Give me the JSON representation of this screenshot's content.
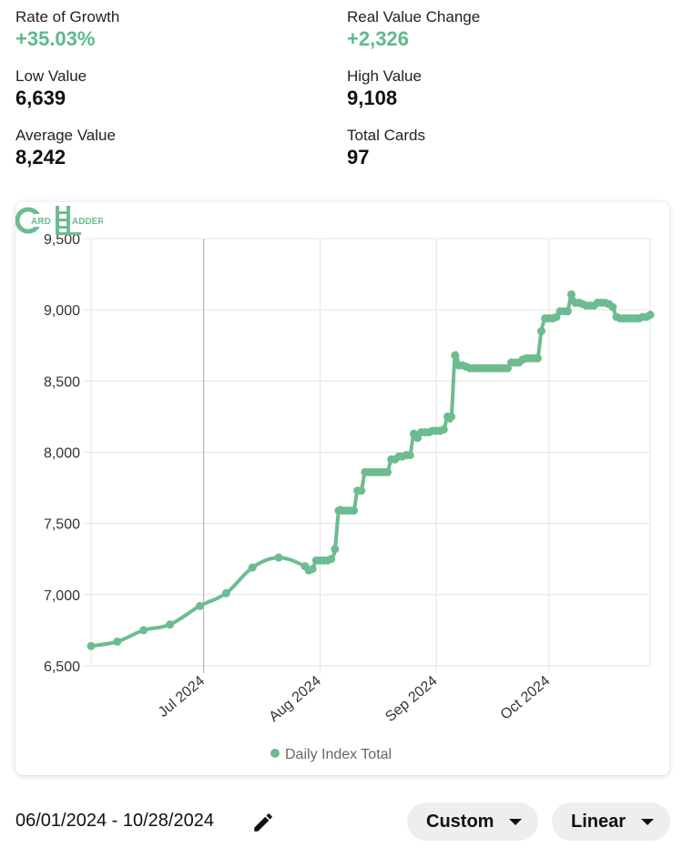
{
  "stats": {
    "rate_of_growth": {
      "label": "Rate of Growth",
      "value": "+35.03%"
    },
    "real_value_change": {
      "label": "Real Value Change",
      "value": "+2,326"
    },
    "low_value": {
      "label": "Low Value",
      "value": "6,639"
    },
    "high_value": {
      "label": "High Value",
      "value": "9,108"
    },
    "average_value": {
      "label": "Average Value",
      "value": "8,242"
    },
    "total_cards": {
      "label": "Total Cards",
      "value": "97"
    }
  },
  "colors": {
    "accent": "#5cb98c",
    "line": "#6cbc8f"
  },
  "logo": {
    "icon": "card-ladder-logo",
    "text": "CARD LADDER"
  },
  "footer": {
    "date_range": "06/01/2024 - 10/28/2024",
    "edit_icon": "pencil-icon",
    "range_select": "Custom",
    "scale_select": "Linear"
  },
  "chart_data": {
    "type": "line",
    "title": "",
    "xlabel": "",
    "ylabel": "",
    "ylim": [
      6500,
      9500
    ],
    "xlim": [
      "2024-06-01",
      "2024-10-28"
    ],
    "y_ticks": [
      "9,500",
      "9,000",
      "8,500",
      "8,000",
      "7,500",
      "7,000",
      "6,500"
    ],
    "x_ticks": [
      {
        "date": "2024-07-01",
        "label": "Jul 2024"
      },
      {
        "date": "2024-08-01",
        "label": "Aug 2024"
      },
      {
        "date": "2024-09-01",
        "label": "Sep 2024"
      },
      {
        "date": "2024-10-01",
        "label": "Oct 2024"
      }
    ],
    "grid": true,
    "legend": "bottom",
    "series": [
      {
        "name": "Daily Index Total",
        "points": [
          [
            "2024-06-01",
            6639
          ],
          [
            "2024-06-08",
            6670
          ],
          [
            "2024-06-15",
            6750
          ],
          [
            "2024-06-22",
            6790
          ],
          [
            "2024-06-30",
            6920
          ],
          [
            "2024-07-07",
            7010
          ],
          [
            "2024-07-14",
            7190
          ],
          [
            "2024-07-21",
            7260
          ],
          [
            "2024-07-28",
            7200
          ],
          [
            "2024-07-29",
            7170
          ],
          [
            "2024-07-30",
            7180
          ],
          [
            "2024-07-31",
            7240
          ],
          [
            "2024-08-01",
            7240
          ],
          [
            "2024-08-02",
            7240
          ],
          [
            "2024-08-03",
            7240
          ],
          [
            "2024-08-04",
            7250
          ],
          [
            "2024-08-05",
            7320
          ],
          [
            "2024-08-06",
            7590
          ],
          [
            "2024-08-07",
            7590
          ],
          [
            "2024-08-08",
            7590
          ],
          [
            "2024-08-09",
            7590
          ],
          [
            "2024-08-10",
            7590
          ],
          [
            "2024-08-11",
            7730
          ],
          [
            "2024-08-12",
            7730
          ],
          [
            "2024-08-13",
            7860
          ],
          [
            "2024-08-14",
            7860
          ],
          [
            "2024-08-15",
            7860
          ],
          [
            "2024-08-16",
            7860
          ],
          [
            "2024-08-17",
            7860
          ],
          [
            "2024-08-18",
            7860
          ],
          [
            "2024-08-19",
            7860
          ],
          [
            "2024-08-20",
            7950
          ],
          [
            "2024-08-21",
            7950
          ],
          [
            "2024-08-22",
            7970
          ],
          [
            "2024-08-23",
            7970
          ],
          [
            "2024-08-24",
            7980
          ],
          [
            "2024-08-25",
            7980
          ],
          [
            "2024-08-26",
            8130
          ],
          [
            "2024-08-27",
            8100
          ],
          [
            "2024-08-28",
            8140
          ],
          [
            "2024-08-29",
            8140
          ],
          [
            "2024-08-30",
            8140
          ],
          [
            "2024-08-31",
            8150
          ],
          [
            "2024-09-01",
            8150
          ],
          [
            "2024-09-02",
            8150
          ],
          [
            "2024-09-03",
            8160
          ],
          [
            "2024-09-04",
            8250
          ],
          [
            "2024-09-05",
            8250
          ],
          [
            "2024-09-06",
            8680
          ],
          [
            "2024-09-07",
            8610
          ],
          [
            "2024-09-08",
            8610
          ],
          [
            "2024-09-09",
            8600
          ],
          [
            "2024-09-10",
            8590
          ],
          [
            "2024-09-11",
            8590
          ],
          [
            "2024-09-12",
            8590
          ],
          [
            "2024-09-13",
            8590
          ],
          [
            "2024-09-14",
            8590
          ],
          [
            "2024-09-15",
            8590
          ],
          [
            "2024-09-16",
            8590
          ],
          [
            "2024-09-17",
            8590
          ],
          [
            "2024-09-18",
            8590
          ],
          [
            "2024-09-19",
            8590
          ],
          [
            "2024-09-20",
            8590
          ],
          [
            "2024-09-21",
            8630
          ],
          [
            "2024-09-22",
            8630
          ],
          [
            "2024-09-23",
            8630
          ],
          [
            "2024-09-24",
            8650
          ],
          [
            "2024-09-25",
            8660
          ],
          [
            "2024-09-26",
            8660
          ],
          [
            "2024-09-27",
            8660
          ],
          [
            "2024-09-28",
            8660
          ],
          [
            "2024-09-29",
            8850
          ],
          [
            "2024-09-30",
            8940
          ],
          [
            "2024-10-01",
            8940
          ],
          [
            "2024-10-02",
            8940
          ],
          [
            "2024-10-03",
            8950
          ],
          [
            "2024-10-04",
            8990
          ],
          [
            "2024-10-05",
            8990
          ],
          [
            "2024-10-06",
            8990
          ],
          [
            "2024-10-07",
            9108
          ],
          [
            "2024-10-08",
            9050
          ],
          [
            "2024-10-09",
            9050
          ],
          [
            "2024-10-10",
            9040
          ],
          [
            "2024-10-11",
            9030
          ],
          [
            "2024-10-12",
            9030
          ],
          [
            "2024-10-13",
            9030
          ],
          [
            "2024-10-14",
            9050
          ],
          [
            "2024-10-15",
            9050
          ],
          [
            "2024-10-16",
            9050
          ],
          [
            "2024-10-17",
            9040
          ],
          [
            "2024-10-18",
            9020
          ],
          [
            "2024-10-19",
            8950
          ],
          [
            "2024-10-20",
            8940
          ],
          [
            "2024-10-21",
            8940
          ],
          [
            "2024-10-22",
            8940
          ],
          [
            "2024-10-23",
            8940
          ],
          [
            "2024-10-24",
            8940
          ],
          [
            "2024-10-25",
            8940
          ],
          [
            "2024-10-26",
            8950
          ],
          [
            "2024-10-27",
            8950
          ],
          [
            "2024-10-28",
            8965
          ]
        ]
      }
    ]
  }
}
